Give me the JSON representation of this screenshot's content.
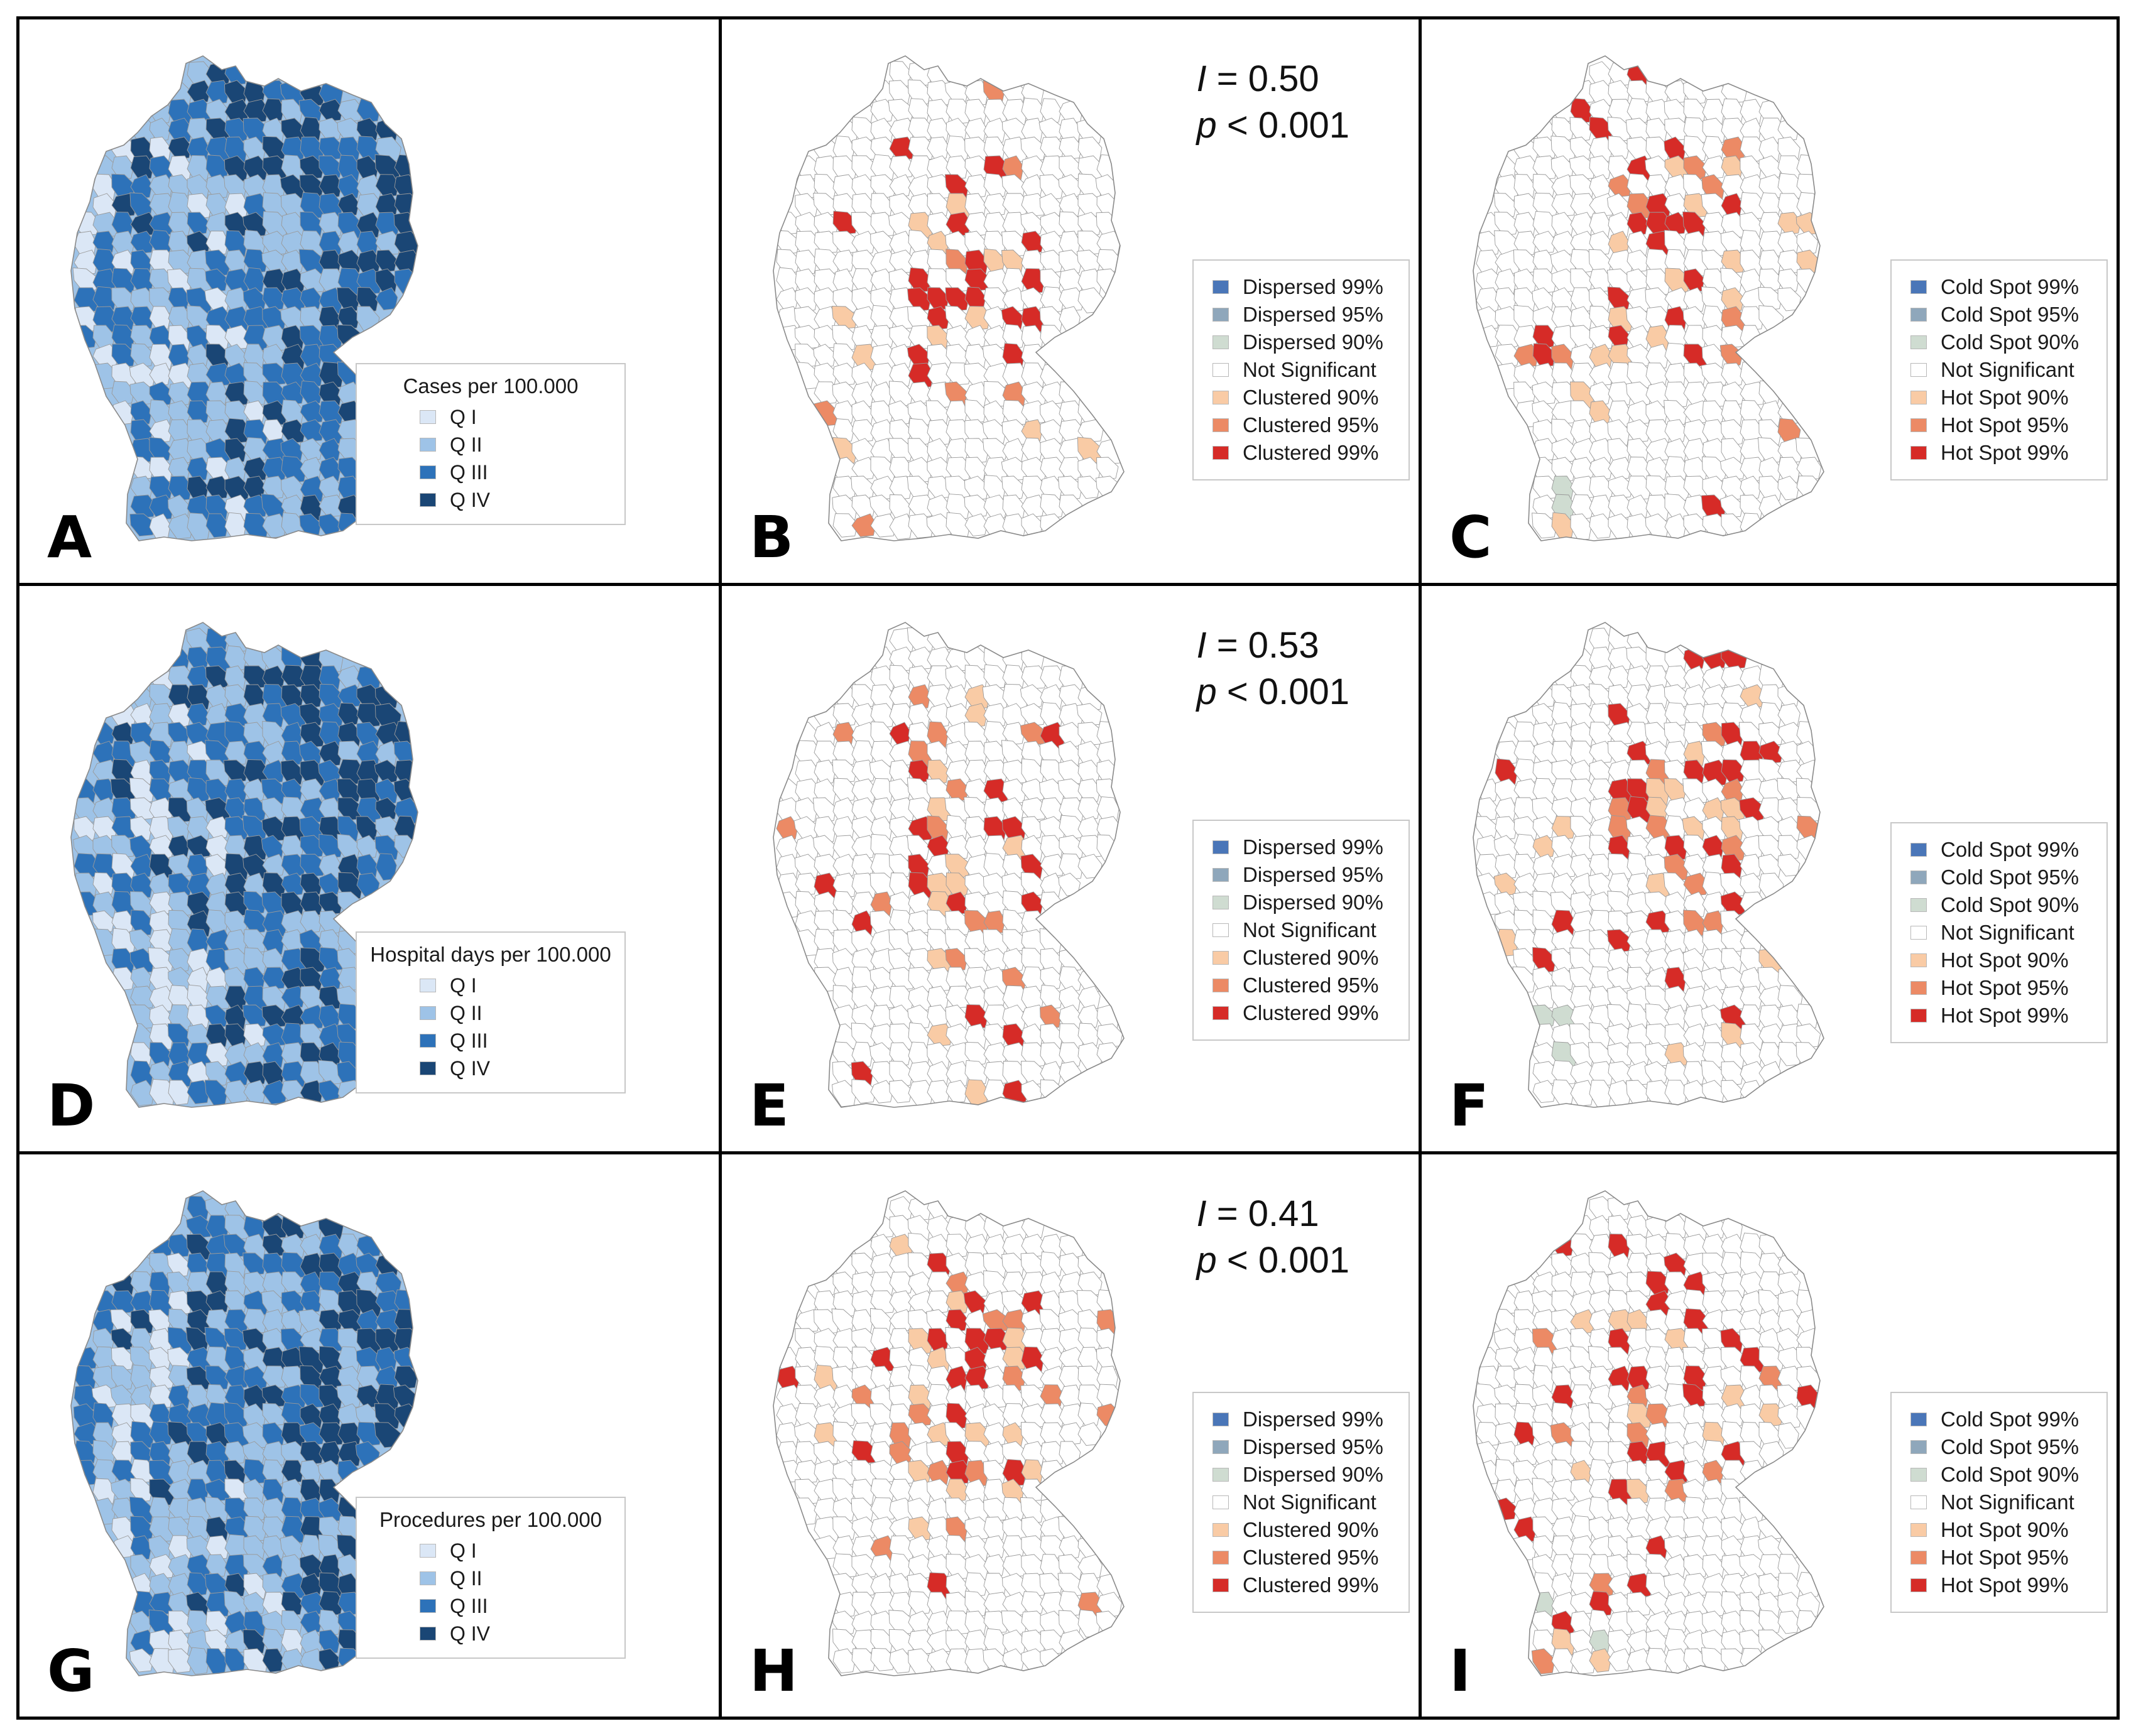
{
  "colors": {
    "q1": "#dbe7f6",
    "q2": "#9ec3e7",
    "q3": "#2d72b9",
    "q4": "#1a4675",
    "c99": "#4a76b8",
    "c95": "#8fa7bb",
    "c90": "#cfdcd1",
    "ns": "#ffffff",
    "h90": "#f9cba5",
    "h95": "#ec8a65",
    "h99": "#d62b27",
    "border": "#9a9a9a"
  },
  "dispersed_legend": [
    "Dispersed 99%",
    "Dispersed 95%",
    "Dispersed 90%",
    "Not Significant",
    "Clustered 90%",
    "Clustered 95%",
    "Clustered 99%"
  ],
  "hotspot_legend": [
    "Cold Spot 99%",
    "Cold Spot 95%",
    "Cold Spot 90%",
    "Not Significant",
    "Hot Spot 90%",
    "Hot Spot 95%",
    "Hot Spot 99%"
  ],
  "quartile_labels": [
    "Q I",
    "Q II",
    "Q III",
    "Q IV"
  ],
  "panels": {
    "A": {
      "letter": "A",
      "legend_title": "Cases per 100.000"
    },
    "B": {
      "letter": "B",
      "I_label": "I",
      "I_value": "= 0.50",
      "p_label": "p",
      "p_value": "< 0.001"
    },
    "C": {
      "letter": "C"
    },
    "D": {
      "letter": "D",
      "legend_title": "Hospital days per 100.000"
    },
    "E": {
      "letter": "E",
      "I_label": "I",
      "I_value": "= 0.53",
      "p_label": "p",
      "p_value": "< 0.001"
    },
    "F": {
      "letter": "F"
    },
    "G": {
      "letter": "G",
      "legend_title": "Procedures per 100.000"
    },
    "H": {
      "letter": "H",
      "I_label": "I",
      "I_value": "= 0.41",
      "p_label": "p",
      "p_value": "< 0.001"
    },
    "I": {
      "letter": "I"
    }
  }
}
